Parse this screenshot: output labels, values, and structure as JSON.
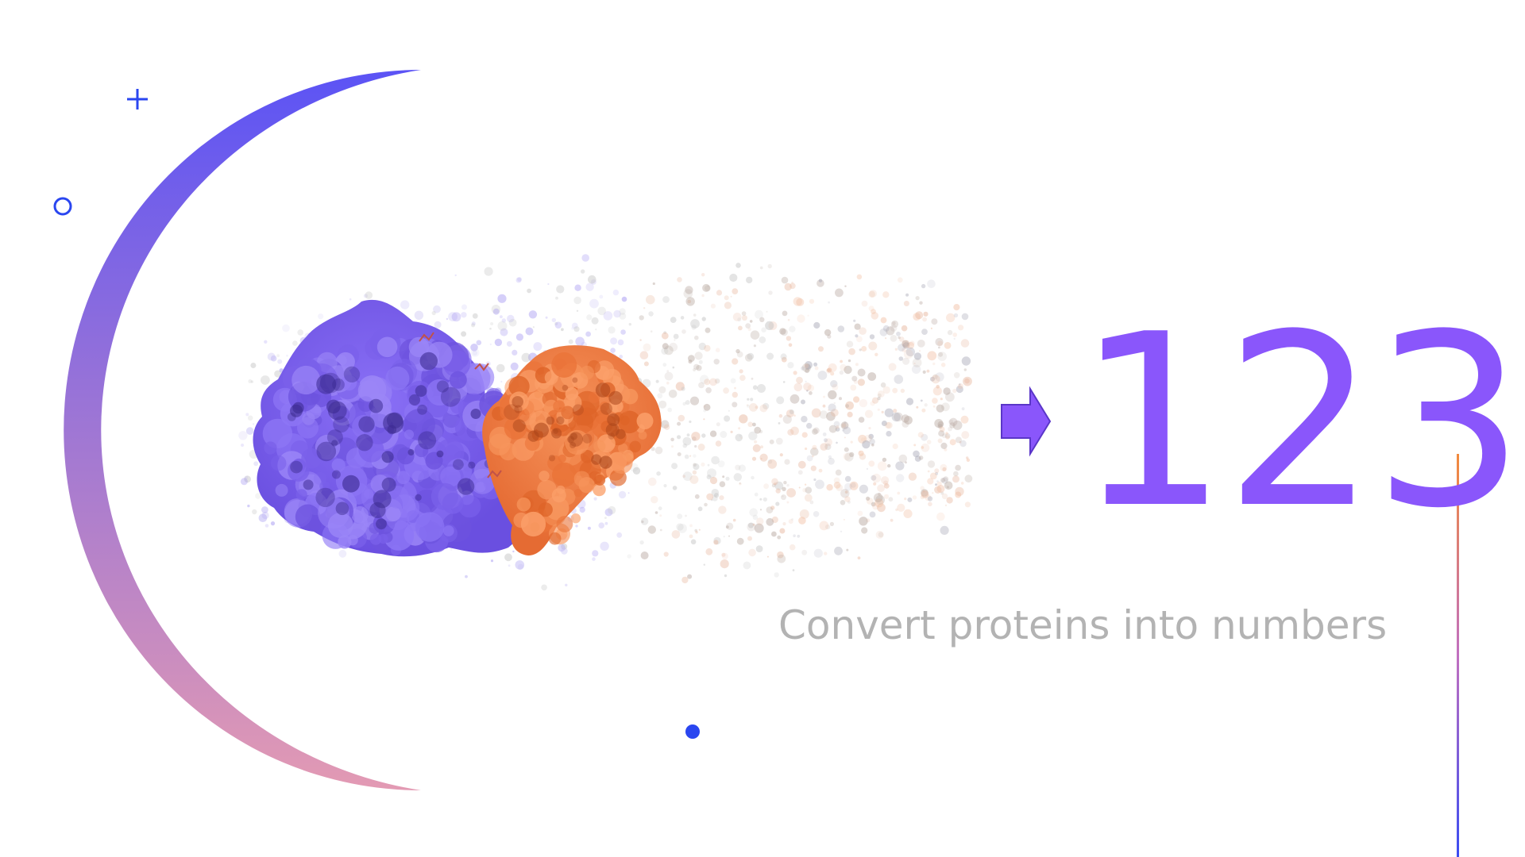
{
  "colors": {
    "accent_purple": "#8a56fb",
    "arc_top": "#5b53f5",
    "arc_bottom": "#e39ab3",
    "protein_purple": "#7d63ee",
    "protein_orange": "#f27d45",
    "subtitle_gray": "#b3b3b3",
    "decoration_blue": "#2a46f0",
    "side_line_top": "#f28a3c",
    "side_line_bottom": "#3b4cf2"
  },
  "hero": {
    "number": "123",
    "subtitle": "Convert proteins into numbers"
  },
  "icons": {
    "plus": "plus-icon",
    "circle": "circle-outline-icon",
    "dot": "dot-icon",
    "arrow": "arrow-right-icon"
  }
}
